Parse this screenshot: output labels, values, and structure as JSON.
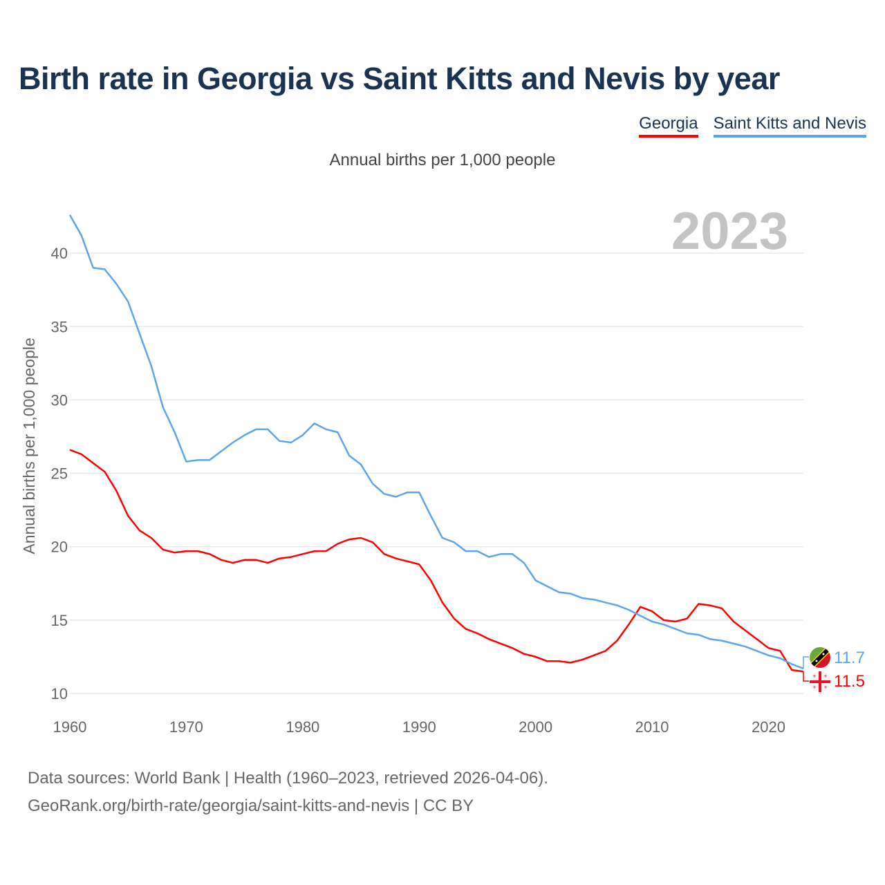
{
  "colors": {
    "georgia": "#ff0000",
    "saint_kitts": "#5da5ea",
    "grid": "#e8e8e8",
    "year_watermark": "#c4c4c4"
  },
  "icons": {
    "georgia_flag": "georgia-flag-icon",
    "saint_kitts_flag": "saint-kitts-and-nevis-flag-icon"
  },
  "footer": {
    "line1": "Data sources: World Bank | Health (1960–2023, retrieved 2026-04-06).",
    "line2": "GeoRank.org/birth-rate/georgia/saint-kitts-and-nevis | CC BY"
  },
  "chart_data": {
    "type": "line",
    "title": "Birth rate in Georgia vs Saint Kitts and Nevis by year",
    "subtitle": "Annual births per 1,000 people",
    "xlabel": "",
    "ylabel": "Annual births per 1,000 people",
    "year_watermark": "2023",
    "xlim": [
      1960,
      2023
    ],
    "ylim": [
      10,
      43
    ],
    "xticks": [
      1960,
      1970,
      1980,
      1990,
      2000,
      2010,
      2020
    ],
    "yticks": [
      10,
      15,
      20,
      25,
      30,
      35,
      40
    ],
    "grid": true,
    "legend_placement": "top-right",
    "x": [
      1960,
      1961,
      1962,
      1963,
      1964,
      1965,
      1966,
      1967,
      1968,
      1969,
      1970,
      1971,
      1972,
      1973,
      1974,
      1975,
      1976,
      1977,
      1978,
      1979,
      1980,
      1981,
      1982,
      1983,
      1984,
      1985,
      1986,
      1987,
      1988,
      1989,
      1990,
      1991,
      1992,
      1993,
      1994,
      1995,
      1996,
      1997,
      1998,
      1999,
      2000,
      2001,
      2002,
      2003,
      2004,
      2005,
      2006,
      2007,
      2008,
      2009,
      2010,
      2011,
      2012,
      2013,
      2014,
      2015,
      2016,
      2017,
      2018,
      2019,
      2020,
      2021,
      2022,
      2023
    ],
    "series": [
      {
        "name": "Georgia",
        "key": "georgia",
        "end_label": "11.5",
        "values": [
          26.6,
          26.3,
          25.7,
          25.1,
          23.8,
          22.1,
          21.1,
          20.6,
          19.8,
          19.6,
          19.7,
          19.7,
          19.5,
          19.1,
          18.9,
          19.1,
          19.1,
          18.9,
          19.2,
          19.3,
          19.5,
          19.7,
          19.7,
          20.2,
          20.5,
          20.6,
          20.3,
          19.5,
          19.2,
          19.0,
          18.8,
          17.7,
          16.2,
          15.1,
          14.4,
          14.1,
          13.7,
          13.4,
          13.1,
          12.7,
          12.5,
          12.2,
          12.2,
          12.1,
          12.3,
          12.6,
          12.9,
          13.6,
          14.7,
          15.9,
          15.6,
          15.0,
          14.9,
          15.1,
          16.1,
          16.0,
          15.8,
          14.9,
          14.3,
          13.7,
          13.1,
          12.9,
          11.6,
          11.5
        ]
      },
      {
        "name": "Saint Kitts and Nevis",
        "key": "saint_kitts",
        "end_label": "11.7",
        "values": [
          42.6,
          41.2,
          39.0,
          38.9,
          37.9,
          36.7,
          34.5,
          32.3,
          29.5,
          27.8,
          25.8,
          25.9,
          25.9,
          26.5,
          27.1,
          27.6,
          28.0,
          28.0,
          27.2,
          27.1,
          27.6,
          28.4,
          28.0,
          27.8,
          26.2,
          25.6,
          24.3,
          23.6,
          23.4,
          23.7,
          23.7,
          22.1,
          20.6,
          20.3,
          19.7,
          19.7,
          19.3,
          19.5,
          19.5,
          18.9,
          17.7,
          17.3,
          16.9,
          16.8,
          16.5,
          16.4,
          16.2,
          16.0,
          15.7,
          15.3,
          14.9,
          14.7,
          14.4,
          14.1,
          14.0,
          13.7,
          13.6,
          13.4,
          13.2,
          12.9,
          12.6,
          12.4,
          12.0,
          11.7
        ]
      }
    ]
  }
}
